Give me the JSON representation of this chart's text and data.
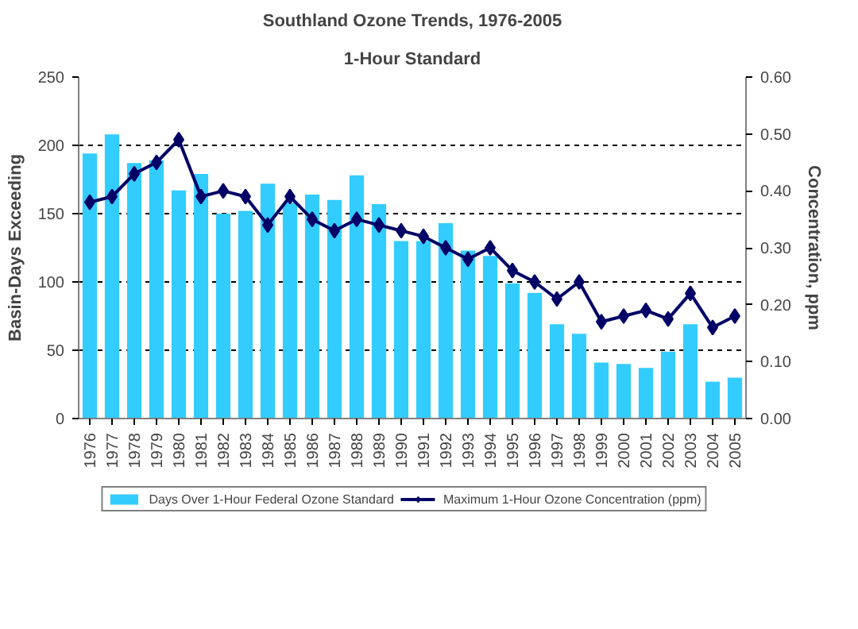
{
  "chart_data": {
    "type": "bar",
    "title": "Southland Ozone Trends, 1976-2005",
    "subtitle": "1-Hour Standard",
    "ylabel": "Basin-Days Exceeding",
    "y2label": "Concentration, ppm",
    "categories": [
      "1976",
      "1977",
      "1978",
      "1979",
      "1980",
      "1981",
      "1982",
      "1983",
      "1984",
      "1985",
      "1986",
      "1987",
      "1988",
      "1989",
      "1990",
      "1991",
      "1992",
      "1993",
      "1994",
      "1995",
      "1996",
      "1997",
      "1998",
      "1999",
      "2000",
      "2001",
      "2002",
      "2003",
      "2004",
      "2005"
    ],
    "series": [
      {
        "name": "Days Over 1-Hour Federal Ozone Standard",
        "type": "bar",
        "color": "#33ccff",
        "values": [
          194,
          208,
          187,
          189,
          167,
          179,
          150,
          152,
          172,
          158,
          164,
          160,
          178,
          157,
          130,
          130,
          143,
          123,
          119,
          99,
          92,
          69,
          62,
          41,
          40,
          37,
          49,
          69,
          27,
          30
        ]
      },
      {
        "name": "Maximum 1-Hour Ozone Concentration (ppm)",
        "type": "line",
        "axis": "y2",
        "color": "#000066",
        "marker": "diamond",
        "line_style": "solid",
        "values": [
          0.38,
          0.39,
          0.43,
          0.45,
          0.49,
          0.39,
          0.4,
          0.39,
          0.34,
          0.39,
          0.35,
          0.33,
          0.35,
          0.34,
          0.33,
          0.32,
          0.3,
          0.28,
          0.3,
          0.26,
          0.24,
          0.21,
          0.24,
          0.17,
          0.18,
          0.19,
          0.175,
          0.22,
          0.16,
          0.18
        ]
      }
    ],
    "ylim": [
      0,
      250
    ],
    "yticks": [
      0,
      50,
      100,
      150,
      200,
      250
    ],
    "y2lim": [
      0,
      0.6
    ],
    "y2ticks": [
      {
        "value": 0,
        "label": "0.00"
      },
      {
        "value": 0.1,
        "label": "0.10"
      },
      {
        "value": 0.2,
        "label": "0.20"
      },
      {
        "value": 0.3,
        "label": "0.30"
      },
      {
        "value": 0.4,
        "label": "0.40"
      },
      {
        "value": 0.5,
        "label": "0.50"
      },
      {
        "value": 0.6,
        "label": "0.60"
      }
    ],
    "grid": "y",
    "legend": "bottom"
  }
}
